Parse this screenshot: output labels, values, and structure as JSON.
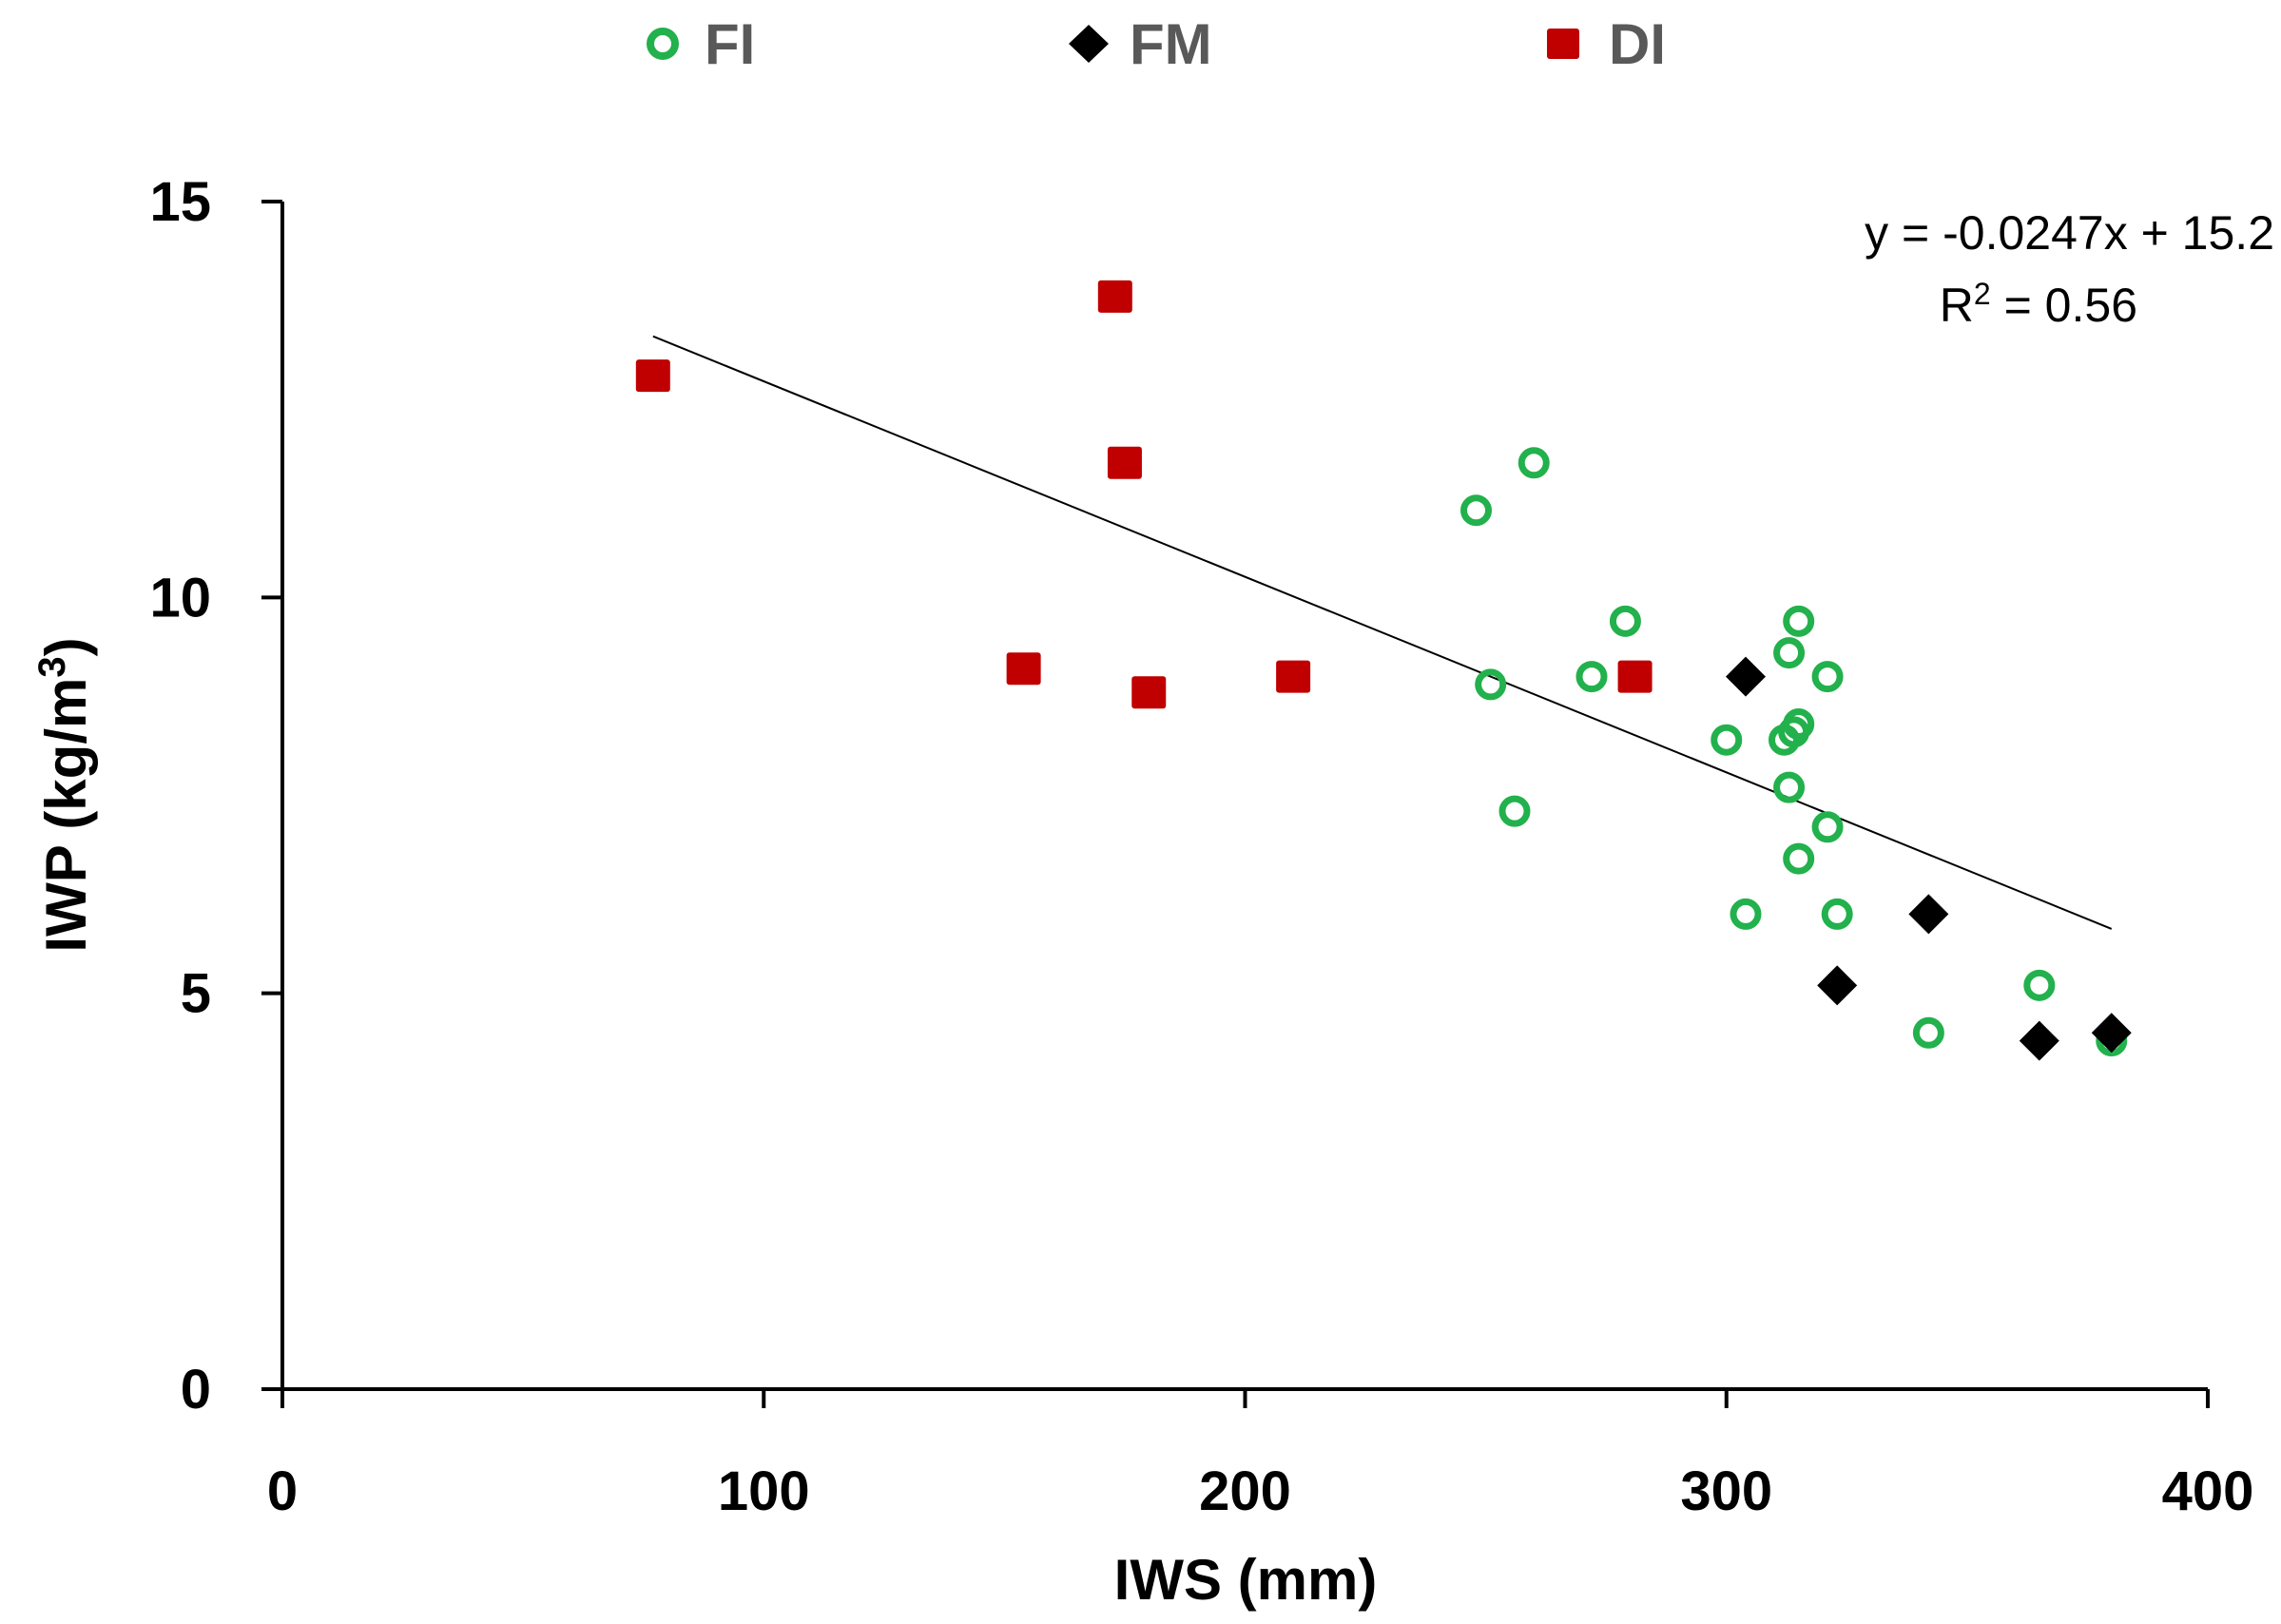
{
  "chart_data": {
    "type": "scatter",
    "title": "",
    "xlabel": "IWS (mm)",
    "ylabel_main": "IWP (kg/m",
    "ylabel_sup": "3",
    "ylabel_end": ")",
    "xlim": [
      0,
      400
    ],
    "ylim": [
      0,
      15
    ],
    "xticks": [
      0,
      100,
      200,
      300,
      400
    ],
    "yticks": [
      0,
      5,
      10,
      15
    ],
    "xtick_labels": [
      "0",
      "100",
      "200",
      "300",
      "400"
    ],
    "ytick_labels": [
      "0",
      "5",
      "10",
      "15"
    ],
    "grid": false,
    "legend_position": "top",
    "series": [
      {
        "name": "FI",
        "marker": "circle-open",
        "color": "#22b14c",
        "x": [
          248,
          251,
          256,
          260,
          272,
          279,
          300,
          304,
          312,
          313,
          313,
          314,
          315,
          315,
          315,
          321,
          321,
          323,
          342,
          365,
          380
        ],
        "y": [
          11.1,
          8.9,
          7.3,
          11.7,
          9.0,
          9.7,
          8.2,
          6.0,
          8.2,
          7.6,
          9.3,
          8.3,
          9.7,
          8.4,
          6.7,
          7.1,
          9.0,
          6.0,
          4.5,
          5.1,
          4.4
        ]
      },
      {
        "name": "FM",
        "marker": "diamond",
        "color": "#000000",
        "x": [
          304,
          323,
          342,
          365,
          380
        ],
        "y": [
          9.0,
          5.1,
          6.0,
          4.4,
          4.5
        ]
      },
      {
        "name": "DI",
        "marker": "square",
        "color": "#c00000",
        "x": [
          77,
          154,
          173,
          175,
          180,
          210,
          281
        ],
        "y": [
          12.8,
          9.1,
          13.8,
          11.7,
          8.8,
          9.0,
          9.0
        ]
      }
    ],
    "trendline": {
      "slope": -0.0247,
      "intercept": 15.2,
      "x_range": [
        77,
        380
      ],
      "color": "#000000",
      "equation_label": "y = -0.0247x + 15.2",
      "r2_prefix": "R",
      "r2_sup": "2",
      "r2_suffix": " = 0.56"
    }
  }
}
